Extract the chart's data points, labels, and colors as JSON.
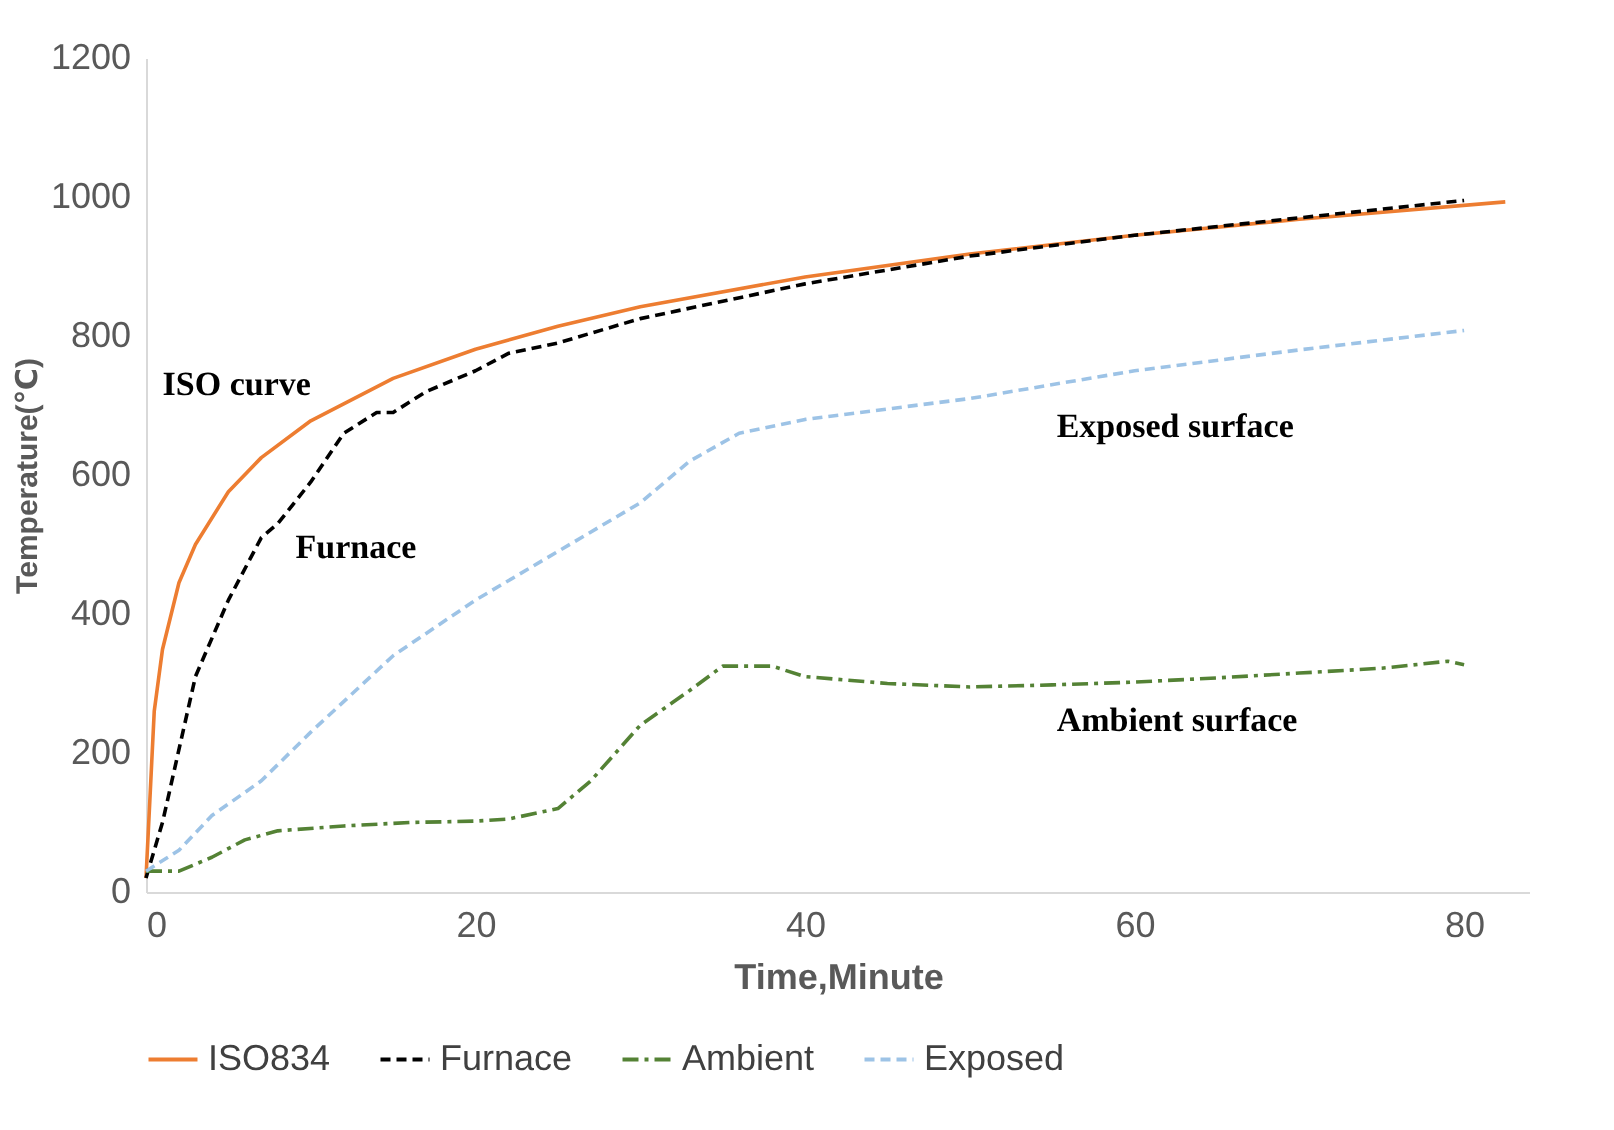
{
  "chart_data": {
    "type": "line",
    "xlabel": "Time,Minute",
    "ylabel": "Temperature(℃)",
    "xlim": [
      0,
      84
    ],
    "xticks": [
      0,
      20,
      40,
      60,
      80
    ],
    "ylim": [
      0,
      1200
    ],
    "yticks": [
      0,
      200,
      400,
      600,
      800,
      1000,
      1200
    ],
    "grid": false,
    "legend": "bottom",
    "marker": "none",
    "series": [
      {
        "name": "ISO834",
        "color": "#ed7d31",
        "line_style": "solid",
        "x": [
          0,
          0.5,
          1,
          2,
          3,
          5,
          7,
          10,
          15,
          20,
          25,
          30,
          40,
          50,
          60,
          70,
          82.5
        ],
        "values": [
          20,
          260,
          349,
          445,
          500,
          576,
          625,
          678,
          739,
          781,
          814,
          842,
          885,
          918,
          945,
          968,
          993
        ]
      },
      {
        "name": "Furnace",
        "color": "#000000",
        "line_style": "dashed",
        "x": [
          0,
          1,
          3,
          5,
          7,
          8,
          10,
          12,
          14,
          15,
          17,
          20,
          22,
          25,
          30,
          35,
          40,
          50,
          60,
          70,
          80
        ],
        "values": [
          20,
          100,
          310,
          420,
          510,
          530,
          590,
          660,
          690,
          690,
          720,
          750,
          775,
          790,
          825,
          850,
          875,
          915,
          945,
          970,
          995
        ]
      },
      {
        "name": "Ambient",
        "color": "#548235",
        "line_style": "dashdot",
        "x": [
          0,
          2,
          4,
          6,
          8,
          12,
          16,
          20,
          22,
          25,
          27,
          30,
          33,
          35,
          38,
          40,
          45,
          50,
          55,
          60,
          65,
          70,
          75,
          79,
          80
        ],
        "values": [
          30,
          30,
          50,
          75,
          88,
          95,
          100,
          102,
          105,
          120,
          160,
          240,
          290,
          325,
          325,
          310,
          300,
          295,
          298,
          302,
          308,
          315,
          322,
          332,
          327
        ]
      },
      {
        "name": "Exposed",
        "color": "#9dc3e6",
        "line_style": "dashed",
        "x": [
          0,
          2,
          4,
          7,
          10,
          15,
          20,
          25,
          30,
          33,
          36,
          40,
          50,
          60,
          70,
          80
        ],
        "values": [
          30,
          60,
          110,
          160,
          230,
          340,
          420,
          490,
          560,
          620,
          660,
          680,
          710,
          750,
          780,
          808
        ]
      }
    ],
    "annotations": [
      "ISO curve",
      "Furnace",
      "Exposed surface",
      "Ambient surface"
    ]
  }
}
